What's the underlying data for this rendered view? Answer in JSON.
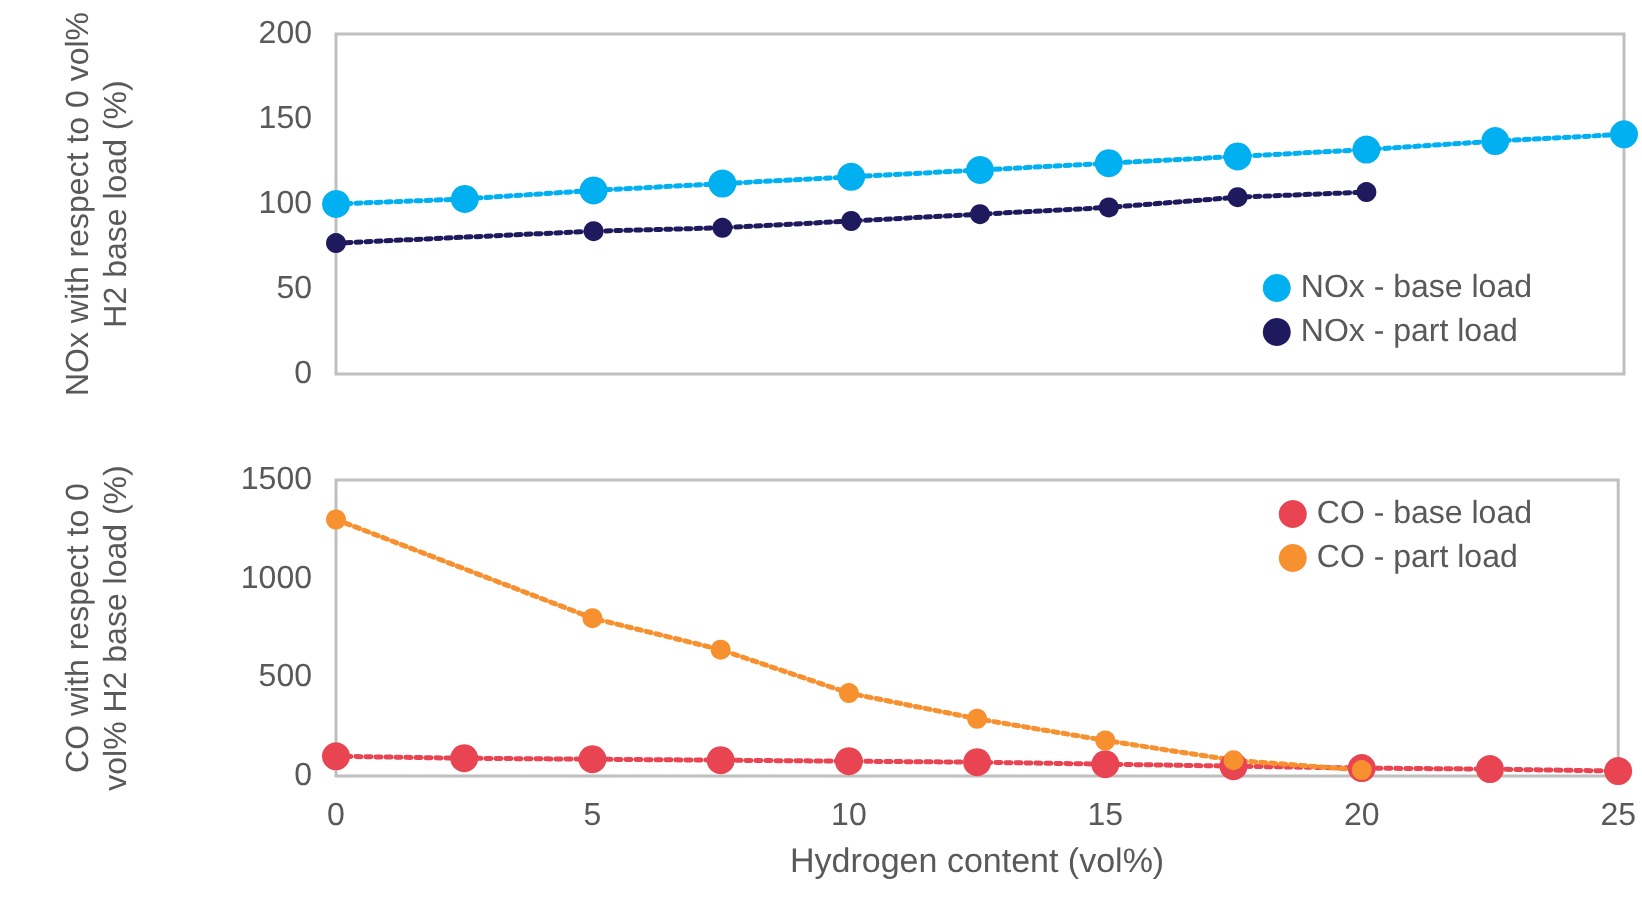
{
  "chart_data": [
    {
      "type": "line",
      "ylabel": "NOx with respect to 0 vol% H2 base load (%)",
      "xlim": [
        0,
        25
      ],
      "xticks": [
        0,
        5,
        10,
        15,
        20,
        25
      ],
      "ylim": [
        0,
        200
      ],
      "yticks": [
        0,
        50,
        100,
        150,
        200
      ],
      "tick_labels": "y",
      "grid": false,
      "legend": "bottom right",
      "marker": "circle",
      "line_style": "dotted",
      "series": [
        {
          "name": "NOx - base load",
          "color": "#00b0f0",
          "x": [
            0,
            2.5,
            5,
            7.5,
            10,
            12.5,
            15,
            17.5,
            20,
            22.5,
            25
          ],
          "values": [
            100,
            103,
            108,
            112,
            116,
            120,
            124,
            128,
            132,
            137,
            141
          ]
        },
        {
          "name": "NOx - part load",
          "color": "#1f1a5e",
          "x": [
            0,
            5,
            7.5,
            10,
            12.5,
            15,
            17.5,
            20
          ],
          "values": [
            77,
            84,
            86,
            90,
            94,
            98,
            104,
            107
          ]
        }
      ]
    },
    {
      "type": "line",
      "xlabel": "Hydrogen content (vol%)",
      "ylabel": "CO with respect to 0 vol% H2 base load (%)",
      "xlim": [
        0,
        25
      ],
      "xticks": [
        0,
        5,
        10,
        15,
        20,
        25
      ],
      "ylim": [
        0,
        1500
      ],
      "yticks": [
        0,
        500,
        1000,
        1500
      ],
      "grid": false,
      "legend": "top right",
      "marker": "circle",
      "line_style": "dotted",
      "series": [
        {
          "name": "CO - base load",
          "color": "#e84452",
          "x": [
            0,
            2.5,
            5,
            7.5,
            10,
            12.5,
            15,
            17.5,
            20,
            22.5,
            25
          ],
          "values": [
            100,
            90,
            85,
            80,
            75,
            70,
            60,
            50,
            40,
            35,
            25
          ]
        },
        {
          "name": "CO - part load",
          "color": "#f7902f",
          "x": [
            0,
            5,
            7.5,
            10,
            12.5,
            15,
            17.5,
            20
          ],
          "values": [
            1300,
            800,
            640,
            420,
            290,
            180,
            80,
            30
          ]
        }
      ]
    }
  ]
}
